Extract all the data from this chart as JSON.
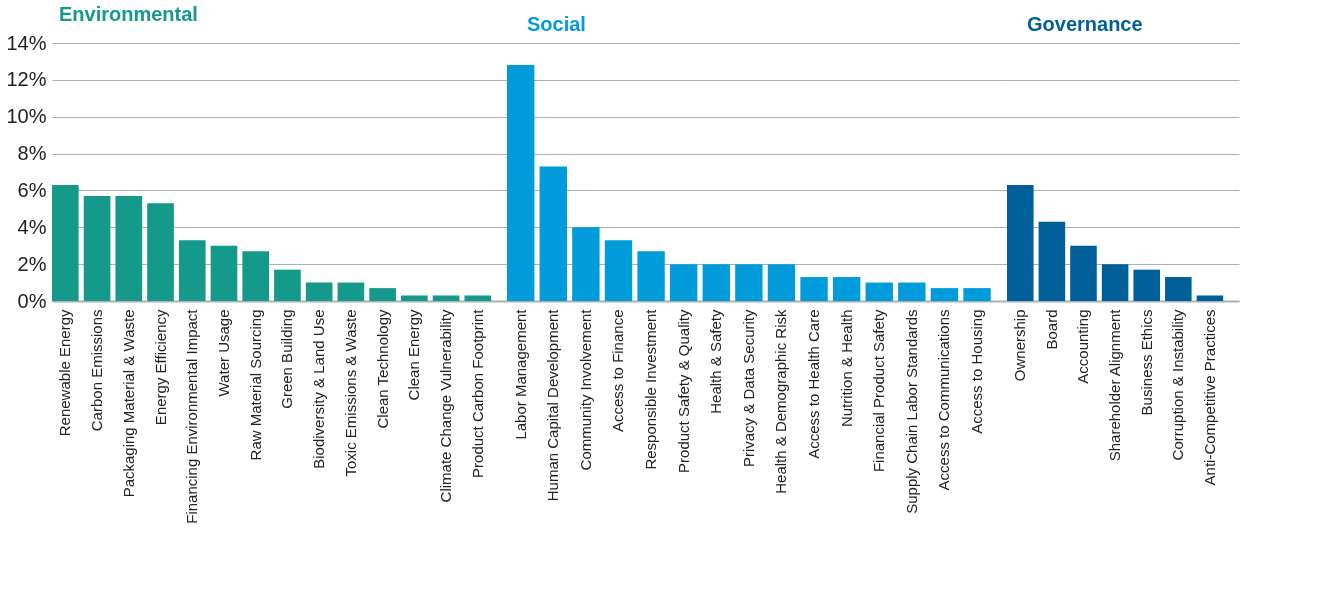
{
  "chart_data": [
    {
      "type": "bar",
      "title": "Environmental",
      "categories": [
        "Renewable Energy",
        "Carbon Emissions",
        "Packaging Material & Waste",
        "Energy Efficiency",
        "Financing Environmental Impact",
        "Water Usage",
        "Raw Material Sourcing",
        "Green Building",
        "Biodiversity & Land Use",
        "Toxic Emissions & Waste",
        "Clean Technology",
        "Clean Energy",
        "Climate Change Vulnerability",
        "Product Carbon Footprint"
      ],
      "values": [
        6.3,
        5.7,
        5.7,
        5.3,
        3.3,
        3.0,
        2.7,
        1.7,
        1.0,
        1.0,
        0.7,
        0.3,
        0.3,
        0.3
      ],
      "color": "#14998a",
      "ylim": [
        0,
        14
      ],
      "yticks": [
        {
          "value": 0,
          "label": "0%"
        },
        {
          "value": 2,
          "label": "2%"
        },
        {
          "value": 4,
          "label": "4%"
        },
        {
          "value": 6,
          "label": "6%"
        },
        {
          "value": 8,
          "label": "8%"
        },
        {
          "value": 10,
          "label": "10%"
        },
        {
          "value": 12,
          "label": "12%"
        },
        {
          "value": 14,
          "label": "14%"
        }
      ],
      "grid": "y"
    },
    {
      "type": "bar",
      "title": "Social",
      "categories": [
        "Labor Management",
        "Human Capital Development",
        "Community Involvement",
        "Access to Finance",
        "Responsible Investment",
        "Product Safety & Quality",
        "Health & Safety",
        "Privacy & Data Security",
        "Health & Demographic Risk",
        "Access to Health Care",
        "Nutrition & Health",
        "Financial Product Safety",
        "Supply Chain Labor Standards",
        "Access to Communications",
        "Access to Housing"
      ],
      "values": [
        12.8,
        7.3,
        4.0,
        3.3,
        2.7,
        2.0,
        2.0,
        2.0,
        2.0,
        1.3,
        1.3,
        1.0,
        1.0,
        0.7,
        0.7
      ],
      "color": "#009bdb",
      "ylim": [
        0,
        14
      ],
      "yticks": [
        {
          "value": 0,
          "label": null
        },
        {
          "value": 2,
          "label": null
        },
        {
          "value": 4,
          "label": null
        },
        {
          "value": 6,
          "label": null
        },
        {
          "value": 8,
          "label": null
        },
        {
          "value": 10,
          "label": null
        },
        {
          "value": 12,
          "label": null
        },
        {
          "value": 14,
          "label": null
        }
      ],
      "grid": "y",
      "tick_labels": "x"
    },
    {
      "type": "bar",
      "title": "Governance",
      "categories": [
        "Ownership",
        "Board",
        "Accounting",
        "Shareholder Alignment",
        "Business Ethics",
        "Corruption & Instability",
        "Anti-Competitive Practices"
      ],
      "values": [
        6.3,
        4.3,
        3.0,
        2.0,
        1.7,
        1.3,
        0.3
      ],
      "color": "#005f99",
      "ylim": [
        0,
        14
      ],
      "yticks": [
        {
          "value": 0,
          "label": null
        },
        {
          "value": 2,
          "label": null
        },
        {
          "value": 4,
          "label": null
        },
        {
          "value": 6,
          "label": null
        },
        {
          "value": 8,
          "label": null
        },
        {
          "value": 10,
          "label": null
        },
        {
          "value": 12,
          "label": null
        },
        {
          "value": 14,
          "label": null
        }
      ],
      "grid": "y",
      "tick_labels": "x"
    }
  ]
}
